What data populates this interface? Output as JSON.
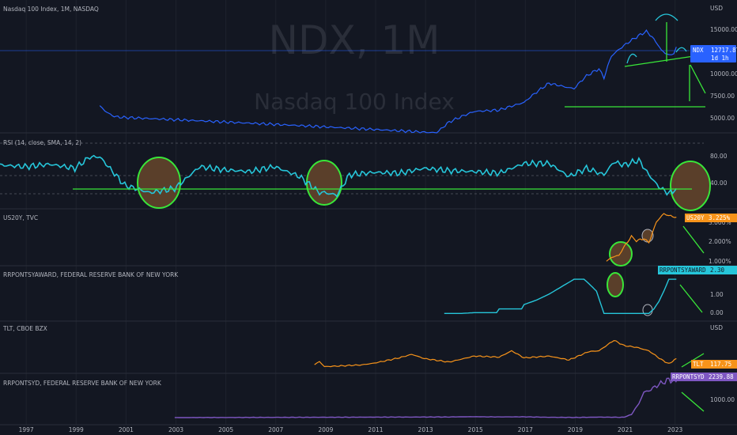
{
  "header": {
    "title": "Nasdaq 100 Index, 1M, NASDAQ"
  },
  "watermark": {
    "symbol": "NDX, 1M",
    "name": "Nasdaq 100 Index"
  },
  "colors": {
    "background": "#131722",
    "grid": "#1e222d",
    "separator": "#2a2e39",
    "ndx": "#2962ff",
    "rsi": "#26c6da",
    "us20y": "#f7931a",
    "rrp": "#26c6da",
    "tlt": "#f7931a",
    "rrpsyd": "#7e57c2",
    "annotation": "#39e639",
    "circle_fill": "#5a3f2a",
    "tag_bg": "#2962ff"
  },
  "x_axis": {
    "labels": [
      "1997",
      "1999",
      "2001",
      "2003",
      "2005",
      "2007",
      "2009",
      "2011",
      "2013",
      "2015",
      "2017",
      "2019",
      "2021",
      "2023"
    ]
  },
  "panes": [
    {
      "id": "ndx",
      "title": "",
      "unit": "USD",
      "ticks": [
        "15000.00",
        "10000.00",
        "7500.00",
        "5000.00"
      ],
      "tag": {
        "symbol": "NDX",
        "value": "12717.87",
        "sub": "1d 1h"
      }
    },
    {
      "id": "rsi",
      "title": "RSI (14, close, SMA, 14, 2)",
      "unit": "",
      "ticks": [
        "80.00",
        "40.00"
      ]
    },
    {
      "id": "us20y",
      "title": "US20Y, TVC",
      "unit": "",
      "ticks": [
        "3.000%",
        "2.000%",
        "1.000%"
      ],
      "tag": {
        "symbol": "US20Y",
        "value": "3.225%"
      }
    },
    {
      "id": "rrp",
      "title": "RRPONTSYAWARD, FEDERAL RESERVE BANK OF NEW YORK",
      "unit": "",
      "ticks": [
        "1.00",
        "0.00"
      ],
      "tag": {
        "symbol": "RRPONTSYAWARD",
        "value": "2.30"
      }
    },
    {
      "id": "tlt",
      "title": "TLT, CBOE BZX",
      "unit": "USD",
      "ticks": [],
      "tag": {
        "symbol": "TLT",
        "value": "117.75"
      }
    },
    {
      "id": "rrpsyd",
      "title": "RRPONTSYD, FEDERAL RESERVE BANK OF NEW YORK",
      "unit": "",
      "ticks": [
        "1000.00"
      ],
      "tag": {
        "symbol": "RRPONTSYD",
        "value": "2239.88"
      }
    }
  ],
  "chart_data": {
    "type": "line",
    "x_range": [
      1996.0,
      2024.2
    ],
    "series": [
      {
        "name": "NDX",
        "pane": "ndx",
        "scale": "log",
        "ylim": [
          3000,
          22000
        ],
        "x": [
          2000.0,
          2000.2,
          2000.5,
          2000.8,
          2013.5,
          2014.0,
          2015.0,
          2016.0,
          2017.0,
          2018.0,
          2018.8,
          2019.0,
          2019.5,
          2020.0,
          2020.2,
          2020.5,
          2021.0,
          2021.5,
          2021.9,
          2022.2,
          2022.5,
          2022.8,
          2023.0,
          2023.1
        ],
        "y": [
          4700,
          4350,
          4000,
          3900,
          3000,
          3600,
          4300,
          4400,
          5000,
          6900,
          6400,
          6300,
          7800,
          8800,
          7500,
          10900,
          13000,
          15000,
          16500,
          14500,
          12000,
          11000,
          11500,
          12717
        ]
      },
      {
        "name": "RSI",
        "pane": "rsi",
        "ylim": [
          20,
          100
        ],
        "x": [
          1996.0,
          1997.0,
          1998.0,
          1999.0,
          1999.6,
          2000.0,
          2001.0,
          2002.0,
          2003.0,
          2004.0,
          2005.0,
          2006.0,
          2007.0,
          2008.0,
          2008.8,
          2009.0,
          2009.5,
          2010.0,
          2011.0,
          2012.0,
          2013.0,
          2014.0,
          2015.0,
          2016.0,
          2017.0,
          2018.0,
          2018.8,
          2019.5,
          2020.2,
          2020.6,
          2021.0,
          2021.6,
          2022.0,
          2022.4,
          2022.8,
          2023.1
        ],
        "y": [
          72,
          70,
          73,
          68,
          82,
          82,
          47,
          38,
          43,
          70,
          66,
          64,
          70,
          58,
          38,
          38,
          35,
          60,
          63,
          62,
          68,
          65,
          64,
          62,
          74,
          74,
          58,
          68,
          60,
          76,
          72,
          78,
          60,
          45,
          37,
          43
        ]
      },
      {
        "name": "US20Y",
        "pane": "us20y",
        "ylim": [
          0.9,
          3.4
        ],
        "x": [
          2020.3,
          2020.5,
          2020.8,
          2021.0,
          2021.3,
          2021.5,
          2021.8,
          2022.0,
          2022.3,
          2022.6,
          2022.8,
          2023.1
        ],
        "y": [
          1.1,
          1.3,
          1.4,
          1.8,
          2.3,
          2.1,
          2.2,
          2.0,
          3.0,
          3.4,
          3.3,
          3.225
        ]
      },
      {
        "name": "RRPONTSYAWARD",
        "pane": "rrp",
        "ylim": [
          -0.2,
          3.0
        ],
        "x": [
          2013.8,
          2014.5,
          2015.0,
          2015.9,
          2016.0,
          2016.9,
          2017.0,
          2017.5,
          2018.0,
          2018.5,
          2019.0,
          2019.4,
          2019.6,
          2019.9,
          2020.2,
          2020.4,
          2021.0,
          2022.0,
          2022.2,
          2022.4,
          2022.6,
          2022.8,
          2023.1
        ],
        "y": [
          0.0,
          0.0,
          0.05,
          0.05,
          0.3,
          0.3,
          0.6,
          0.9,
          1.3,
          1.8,
          2.3,
          2.3,
          2.0,
          1.5,
          0.0,
          0.0,
          0.0,
          0.0,
          0.3,
          0.8,
          1.5,
          2.3,
          2.3
        ]
      },
      {
        "name": "TLT",
        "pane": "tlt",
        "ylim": [
          85,
          175
        ],
        "x": [
          2008.6,
          2008.8,
          2009.0,
          2010.5,
          2011.0,
          2012.0,
          2012.5,
          2013.0,
          2014.0,
          2015.0,
          2016.0,
          2016.5,
          2017.0,
          2018.0,
          2018.8,
          2019.6,
          2020.0,
          2020.6,
          2021.0,
          2021.5,
          2022.0,
          2022.5,
          2022.8,
          2023.1
        ],
        "y": [
          100,
          110,
          95,
          100,
          105,
          120,
          130,
          118,
          108,
          125,
          122,
          140,
          120,
          125,
          114,
          138,
          140,
          170,
          155,
          150,
          140,
          115,
          103,
          117.75
        ]
      },
      {
        "name": "RRPONTSYD",
        "pane": "rrpsyd",
        "ylim": [
          0,
          2500
        ],
        "x": [
          2003.0,
          2014.0,
          2015.0,
          2016.0,
          2017.0,
          2018.0,
          2019.0,
          2020.0,
          2021.0,
          2021.3,
          2021.6,
          2021.8,
          2022.0,
          2022.4,
          2022.8,
          2023.1
        ],
        "y": [
          0,
          40,
          60,
          40,
          50,
          20,
          10,
          30,
          20,
          200,
          900,
          1600,
          1700,
          2100,
          2400,
          2239.88
        ]
      }
    ]
  }
}
